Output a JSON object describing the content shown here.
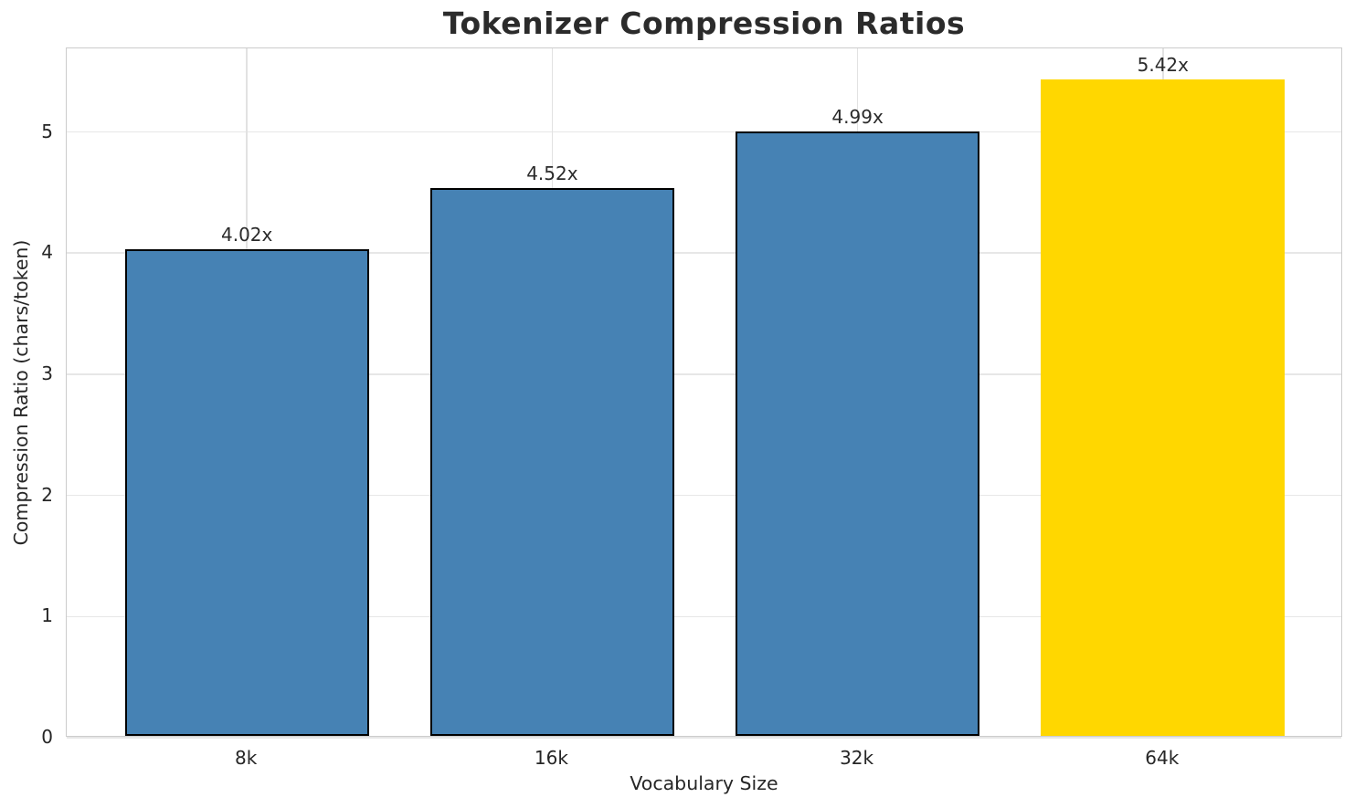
{
  "chart_data": {
    "type": "bar",
    "title": "Tokenizer Compression Ratios",
    "xlabel": "Vocabulary Size",
    "ylabel": "Compression Ratio (chars/token)",
    "categories": [
      "8k",
      "16k",
      "32k",
      "64k"
    ],
    "values": [
      4.02,
      4.52,
      4.99,
      5.42
    ],
    "bar_labels": [
      "4.02x",
      "4.52x",
      "4.99x",
      "5.42x"
    ],
    "bar_colors": [
      "#4682b4",
      "#4682b4",
      "#4682b4",
      "#ffd700"
    ],
    "bar_edge_colors": [
      "#000000",
      "#000000",
      "#000000",
      "none"
    ],
    "ylim": [
      0,
      5.69
    ],
    "yticks": [
      "0",
      "1",
      "2",
      "3",
      "4",
      "5"
    ],
    "grid": true,
    "legend_position": "none"
  }
}
